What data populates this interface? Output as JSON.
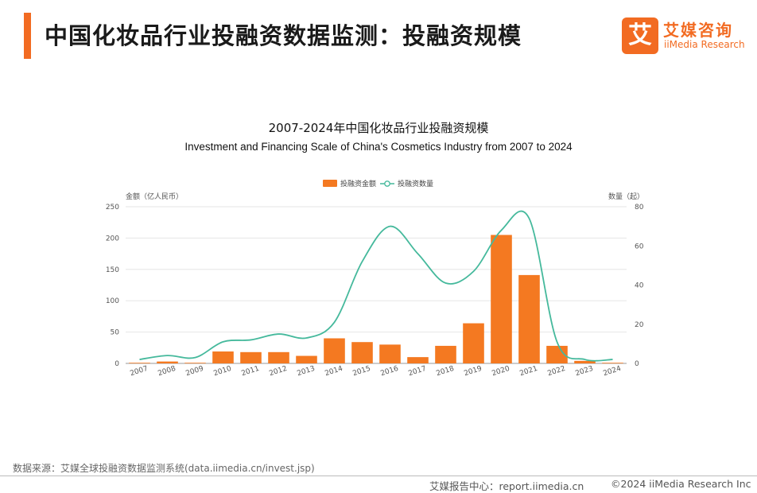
{
  "header": {
    "title": "中国化妆品行业投融资数据监测：投融资规模",
    "logo_mark": "艾",
    "logo_cn": "艾媒咨询",
    "logo_en": "iiMedia Research"
  },
  "colors": {
    "accent": "#f26b22",
    "bar": "#f47921",
    "line": "#45b99c"
  },
  "chart_data": {
    "type": "bar",
    "title": "2007-2024年中国化妆品行业投融资规模",
    "subtitle": "Investment and Financing Scale of China's Cosmetics Industry from 2007 to 2024",
    "categories": [
      "2007",
      "2008",
      "2009",
      "2010",
      "2011",
      "2012",
      "2013",
      "2014",
      "2015",
      "2016",
      "2017",
      "2018",
      "2019",
      "2020",
      "2021",
      "2022",
      "2023",
      "2024"
    ],
    "ylabel_left": "金额（亿人民币）",
    "ylabel_right": "数量（起）",
    "ylim_left": [
      0,
      250
    ],
    "ylim_right": [
      0,
      80
    ],
    "yticks_left": [
      "0",
      "50",
      "100",
      "150",
      "200",
      "250"
    ],
    "yticks_right": [
      "0",
      "20",
      "40",
      "60",
      "80"
    ],
    "legend_position": "top-center",
    "grid": true,
    "series": [
      {
        "name": "投融资金额",
        "type": "bar",
        "axis": "left",
        "values": [
          1,
          3,
          1,
          19,
          18,
          18,
          12,
          40,
          34,
          30,
          10,
          28,
          64,
          205,
          141,
          28,
          4,
          1
        ]
      },
      {
        "name": "投融资数量",
        "type": "line",
        "axis": "right",
        "values": [
          2,
          4,
          3,
          11,
          12,
          15,
          13,
          21,
          52,
          70,
          56,
          41,
          47,
          68,
          74,
          11,
          2,
          2
        ]
      }
    ]
  },
  "footer": {
    "source": "数据来源：艾媒全球投融资数据监测系统(data.iimedia.cn/invest.jsp)",
    "left": "艾媒报告中心：report.iimedia.cn",
    "right": "©2024  iiMedia Research  Inc"
  }
}
